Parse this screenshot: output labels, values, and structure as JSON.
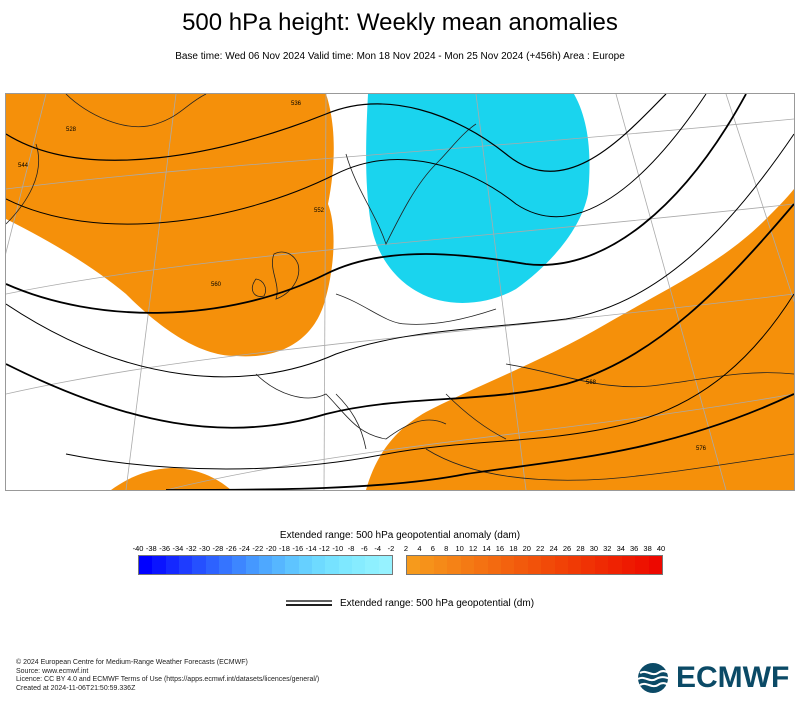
{
  "header": {
    "title": "500 hPa height: Weekly mean anomalies",
    "subtitle": "Base time: Wed 06 Nov 2024 Valid time: Mon 18 Nov 2024 - Mon 25 Nov 2024 (+456h) Area : Europe"
  },
  "map": {
    "anomaly_regions": [
      {
        "sign": "positive",
        "location": "North Atlantic / Greenland - British Isles",
        "color": "#f5900a"
      },
      {
        "sign": "negative",
        "location": "Scandinavia / Baltic",
        "color": "#1ad4ee"
      },
      {
        "sign": "positive",
        "location": "Mediterranean / Middle East",
        "color": "#f5900a"
      },
      {
        "sign": "positive",
        "location": "Southwest Atlantic corner",
        "color": "#f5900a"
      }
    ],
    "contour_labels": [
      "528",
      "536",
      "544",
      "552",
      "560",
      "568",
      "576"
    ]
  },
  "legend": {
    "colorbar_title": "Extended range: 500 hPa geopotential anomaly (dam)",
    "tick_labels": [
      "-40",
      "-38",
      "-36",
      "-34",
      "-32",
      "-30",
      "-28",
      "-26",
      "-24",
      "-22",
      "-20",
      "-18",
      "-16",
      "-14",
      "-12",
      "-10",
      "-8",
      "-6",
      "-4",
      "-2",
      "2",
      "4",
      "6",
      "8",
      "10",
      "12",
      "14",
      "16",
      "18",
      "20",
      "22",
      "24",
      "26",
      "28",
      "30",
      "32",
      "34",
      "36",
      "38",
      "40"
    ],
    "negative_colors": [
      "#0000ff",
      "#0a14ff",
      "#1428ff",
      "#1e3cff",
      "#2550ff",
      "#2d62ff",
      "#3574ff",
      "#3d86ff",
      "#4598ff",
      "#4ea8ff",
      "#56b6ff",
      "#5ec4ff",
      "#66d0ff",
      "#6edaff",
      "#76e2ff",
      "#7ee8ff",
      "#86ecff",
      "#8ef0ff",
      "#96f2ff"
    ],
    "positive_colors": [
      "#f69a1c",
      "#f6921a",
      "#f58a18",
      "#f58216",
      "#f47a14",
      "#f47212",
      "#f36a10",
      "#f3620e",
      "#f25a0c",
      "#f2520a",
      "#f14a08",
      "#f14206",
      "#f03a05",
      "#f03204",
      "#ef2a03",
      "#ef2202",
      "#ee1a01",
      "#ee1200",
      "#ed0800"
    ],
    "line_label": "Extended range: 500 hPa geopotential (dm)"
  },
  "footer": {
    "lines": [
      "© 2024 European Centre for Medium-Range Weather Forecasts (ECMWF)",
      "Source: www.ecmwf.int",
      "Licence: CC BY 4.0 and ECMWF Terms of Use (https://apps.ecmwf.int/datasets/licences/general/)",
      "Created at 2024-11-06T21:50:59.336Z"
    ],
    "logo_text": "ECMWF",
    "logo_color": "#0b4a66"
  }
}
